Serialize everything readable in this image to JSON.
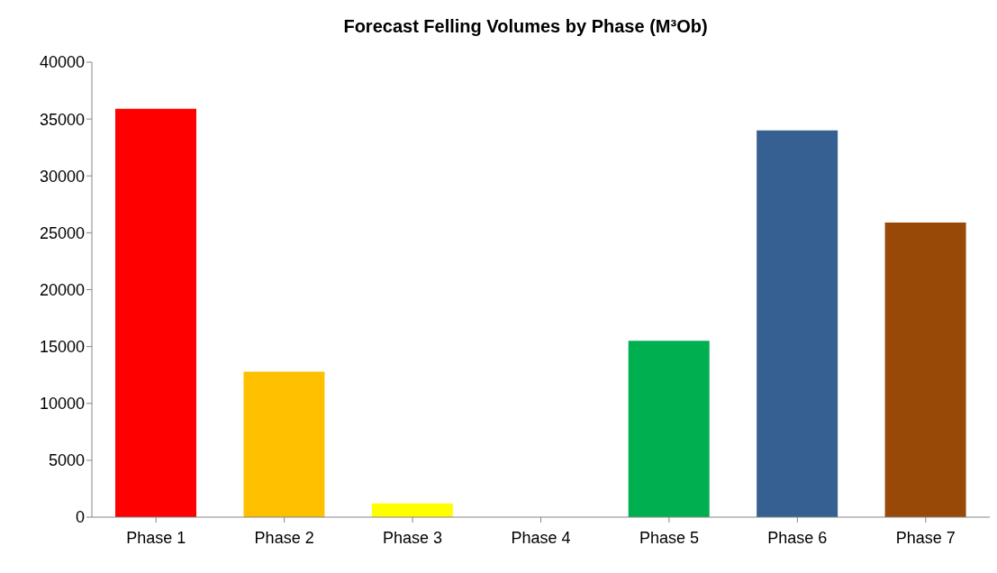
{
  "chart_data": {
    "type": "bar",
    "title": "Forecast Felling Volumes by Phase (M³Ob)",
    "categories": [
      "Phase 1",
      "Phase 2",
      "Phase 3",
      "Phase 4",
      "Phase 5",
      "Phase 6",
      "Phase 7"
    ],
    "values": [
      35900,
      12800,
      1200,
      0,
      15500,
      34000,
      25900
    ],
    "colors": [
      "#ff0000",
      "#ffc000",
      "#ffff00",
      "#7f7f7f",
      "#00b050",
      "#376092",
      "#984807"
    ],
    "ylim": [
      0,
      40000
    ],
    "yticks": [
      0,
      5000,
      10000,
      15000,
      20000,
      25000,
      30000,
      35000,
      40000
    ],
    "grid": false,
    "legend": false
  }
}
